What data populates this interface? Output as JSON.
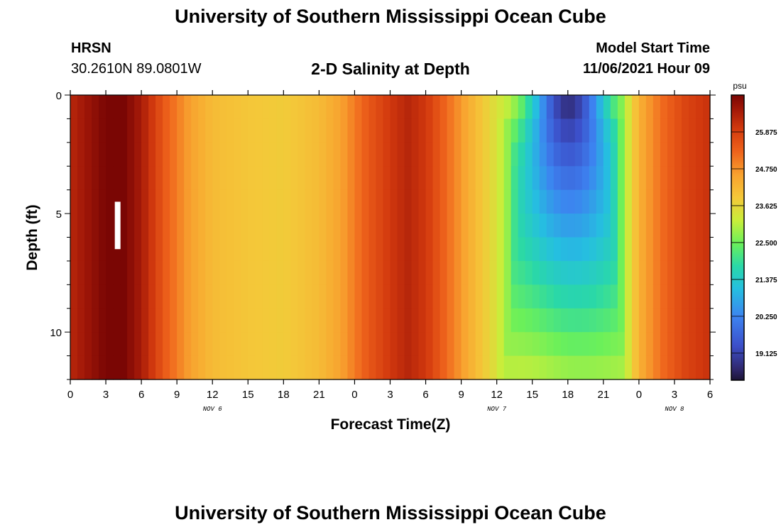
{
  "page": {
    "title": "University of Southern Mississippi Ocean Cube",
    "footer_title": "University of Southern Mississippi Ocean Cube",
    "station": "HRSN",
    "coordinates": "30.2610N  89.0801W",
    "subtitle": "2-D Salinity at Depth",
    "model_start_label": "Model Start Time",
    "model_start_value": "11/06/2021 Hour 09"
  },
  "chart_data": {
    "type": "heatmap",
    "title": "2-D Salinity at Depth",
    "xlabel": "Forecast Time(Z)",
    "ylabel": "Depth (ft)",
    "x_tick_labels": [
      "0",
      "3",
      "6",
      "9",
      "12",
      "15",
      "18",
      "21",
      "0",
      "3",
      "6",
      "9",
      "12",
      "15",
      "18",
      "21",
      "0",
      "3",
      "6"
    ],
    "x_tick_hours": [
      0,
      3,
      6,
      9,
      12,
      15,
      18,
      21,
      24,
      27,
      30,
      33,
      36,
      39,
      42,
      45,
      48,
      51,
      54
    ],
    "date_labels": [
      {
        "label": "NOV 6",
        "hour": 12
      },
      {
        "label": "NOV 7",
        "hour": 36
      },
      {
        "label": "NOV 8",
        "hour": 51
      }
    ],
    "xlim": [
      0,
      54
    ],
    "y_tick_labels": [
      "0",
      "5",
      "10"
    ],
    "y_tick_values": [
      0,
      5,
      10
    ],
    "ylim": [
      0,
      12
    ],
    "colorbar": {
      "unit": "psu",
      "tick_labels": [
        "25.875",
        "24.750",
        "23.625",
        "22.500",
        "21.375",
        "20.250",
        "19.125"
      ],
      "tick_values": [
        25.875,
        24.75,
        23.625,
        22.5,
        21.375,
        20.25,
        19.125
      ],
      "range": [
        18.3,
        27.0
      ]
    },
    "surface_salinity_by_hour": [
      [
        0,
        26.3
      ],
      [
        3,
        27.0
      ],
      [
        4.5,
        27.0
      ],
      [
        6,
        26.5
      ],
      [
        8,
        25.4
      ],
      [
        10,
        24.6
      ],
      [
        12,
        24.1
      ],
      [
        15,
        23.9
      ],
      [
        18,
        23.8
      ],
      [
        21,
        24.1
      ],
      [
        23,
        24.6
      ],
      [
        25,
        25.4
      ],
      [
        27,
        26.0
      ],
      [
        28.5,
        26.3
      ],
      [
        30,
        26.0
      ],
      [
        32,
        25.1
      ],
      [
        34,
        24.2
      ],
      [
        36,
        23.4
      ],
      [
        37,
        22.7
      ],
      [
        37.5,
        22.0
      ],
      [
        38,
        21.0
      ],
      [
        39,
        19.8
      ],
      [
        40,
        19.0
      ],
      [
        41,
        18.6
      ],
      [
        42,
        18.3
      ],
      [
        43,
        18.6
      ],
      [
        44,
        19.1
      ],
      [
        45,
        20.2
      ],
      [
        46,
        21.8
      ],
      [
        47,
        23.2
      ],
      [
        48,
        24.3
      ],
      [
        50,
        25.2
      ],
      [
        52,
        25.8
      ],
      [
        54,
        26.1
      ]
    ],
    "plume_center_hour": 42,
    "marker": {
      "hour": 4,
      "depth_top": 4.5,
      "depth_bottom": 6.5
    }
  }
}
